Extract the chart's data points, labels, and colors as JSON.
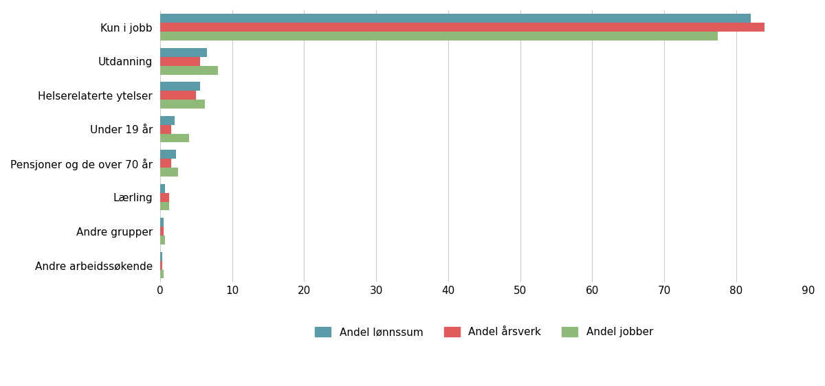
{
  "categories": [
    "Kun i jobb",
    "Utdanning",
    "Helserelaterte ytelser",
    "Under 19 år",
    "Pensjoner og de over 70 år",
    "Lærling",
    "Andre grupper",
    "Andre arbeidssøkende"
  ],
  "series": {
    "Andel lønnssum": [
      82.0,
      6.5,
      5.5,
      2.0,
      2.2,
      0.7,
      0.5,
      0.3
    ],
    "Andel årsverk": [
      84.0,
      5.5,
      5.0,
      1.5,
      1.5,
      1.2,
      0.5,
      0.3
    ],
    "Andel jobber": [
      77.5,
      8.0,
      6.2,
      4.0,
      2.5,
      1.2,
      0.7,
      0.5
    ]
  },
  "colors": {
    "Andel lønnssum": "#5b9ba8",
    "Andel årsverk": "#e05c5c",
    "Andel jobber": "#8fba7a"
  },
  "xlim": [
    0,
    90
  ],
  "xticks": [
    0,
    10,
    20,
    30,
    40,
    50,
    60,
    70,
    80,
    90
  ],
  "bar_height": 0.26,
  "background_color": "#ffffff",
  "grid_color": "#cccccc",
  "legend_labels": [
    "Andel lønnssum",
    "Andel årsverk",
    "Andel jobber"
  ]
}
